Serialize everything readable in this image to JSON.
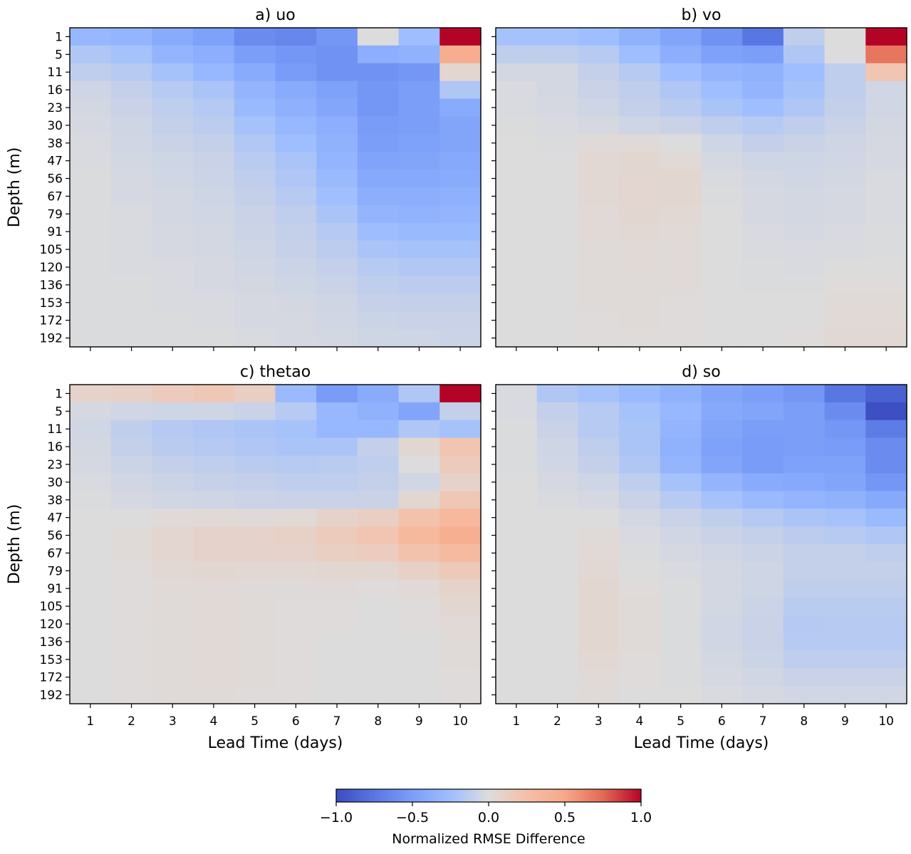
{
  "chart_data": {
    "type": "heatmap",
    "x_label": "Lead Time (days)",
    "y_label": "Depth (m)",
    "lead_times": [
      "1",
      "2",
      "3",
      "4",
      "5",
      "6",
      "7",
      "8",
      "9",
      "10"
    ],
    "depths": [
      "1",
      "5",
      "11",
      "16",
      "23",
      "30",
      "38",
      "47",
      "56",
      "67",
      "79",
      "91",
      "105",
      "120",
      "136",
      "153",
      "172",
      "192"
    ],
    "colorbar": {
      "label": "Normalized RMSE Difference",
      "vmin": -1.0,
      "vmax": 1.0,
      "ticks": [
        "−1.0",
        "−0.5",
        "0.0",
        "0.5",
        "1.0"
      ],
      "tick_values": [
        -1.0,
        -0.5,
        0.0,
        0.5,
        1.0
      ],
      "colormap": "coolwarm"
    },
    "panels": [
      {
        "title": "a) uo",
        "values": [
          [
            -0.3,
            -0.32,
            -0.4,
            -0.48,
            -0.62,
            -0.65,
            -0.55,
            0.0,
            -0.25,
            1.0
          ],
          [
            -0.18,
            -0.22,
            -0.32,
            -0.38,
            -0.5,
            -0.55,
            -0.58,
            -0.38,
            -0.35,
            0.45
          ],
          [
            -0.12,
            -0.15,
            -0.22,
            -0.3,
            -0.4,
            -0.52,
            -0.58,
            -0.58,
            -0.55,
            0.06
          ],
          [
            -0.06,
            -0.1,
            -0.15,
            -0.2,
            -0.32,
            -0.4,
            -0.48,
            -0.55,
            -0.5,
            -0.18
          ],
          [
            -0.04,
            -0.08,
            -0.12,
            -0.16,
            -0.28,
            -0.36,
            -0.44,
            -0.55,
            -0.5,
            -0.4
          ],
          [
            -0.03,
            -0.06,
            -0.1,
            -0.13,
            -0.22,
            -0.3,
            -0.38,
            -0.52,
            -0.5,
            -0.45
          ],
          [
            -0.02,
            -0.05,
            -0.08,
            -0.1,
            -0.17,
            -0.25,
            -0.35,
            -0.5,
            -0.48,
            -0.45
          ],
          [
            -0.02,
            -0.04,
            -0.06,
            -0.08,
            -0.14,
            -0.2,
            -0.32,
            -0.46,
            -0.45,
            -0.42
          ],
          [
            -0.01,
            -0.03,
            -0.05,
            -0.07,
            -0.12,
            -0.18,
            -0.28,
            -0.42,
            -0.42,
            -0.4
          ],
          [
            -0.01,
            -0.03,
            -0.04,
            -0.06,
            -0.1,
            -0.15,
            -0.24,
            -0.38,
            -0.38,
            -0.36
          ],
          [
            -0.01,
            -0.02,
            -0.04,
            -0.05,
            -0.08,
            -0.12,
            -0.2,
            -0.32,
            -0.34,
            -0.32
          ],
          [
            -0.01,
            -0.02,
            -0.03,
            -0.04,
            -0.07,
            -0.1,
            -0.16,
            -0.26,
            -0.28,
            -0.28
          ],
          [
            -0.01,
            -0.02,
            -0.03,
            -0.04,
            -0.06,
            -0.09,
            -0.13,
            -0.2,
            -0.22,
            -0.22
          ],
          [
            -0.01,
            -0.02,
            -0.02,
            -0.03,
            -0.05,
            -0.07,
            -0.1,
            -0.15,
            -0.17,
            -0.17
          ],
          [
            -0.01,
            -0.01,
            -0.02,
            -0.03,
            -0.04,
            -0.06,
            -0.08,
            -0.12,
            -0.13,
            -0.13
          ],
          [
            -0.01,
            -0.01,
            -0.02,
            -0.02,
            -0.03,
            -0.04,
            -0.06,
            -0.09,
            -0.1,
            -0.1
          ],
          [
            -0.01,
            -0.01,
            -0.01,
            -0.02,
            -0.03,
            -0.03,
            -0.05,
            -0.07,
            -0.08,
            -0.08
          ],
          [
            -0.01,
            -0.01,
            -0.01,
            -0.01,
            -0.02,
            -0.03,
            -0.04,
            -0.06,
            -0.06,
            -0.07
          ]
        ]
      },
      {
        "title": "b) vo",
        "values": [
          [
            -0.22,
            -0.22,
            -0.25,
            -0.35,
            -0.45,
            -0.58,
            -0.75,
            -0.12,
            0.0,
            1.0
          ],
          [
            -0.12,
            -0.12,
            -0.15,
            -0.25,
            -0.38,
            -0.48,
            -0.5,
            -0.18,
            0.0,
            0.7
          ],
          [
            -0.04,
            -0.04,
            -0.1,
            -0.15,
            -0.25,
            -0.32,
            -0.35,
            -0.25,
            -0.12,
            0.2
          ],
          [
            -0.02,
            -0.04,
            -0.08,
            -0.12,
            -0.18,
            -0.25,
            -0.32,
            -0.22,
            -0.12,
            -0.05
          ],
          [
            -0.02,
            -0.03,
            -0.06,
            -0.1,
            -0.14,
            -0.2,
            -0.25,
            -0.18,
            -0.1,
            -0.05
          ],
          [
            -0.01,
            -0.02,
            -0.03,
            -0.06,
            -0.08,
            -0.12,
            -0.15,
            -0.12,
            -0.08,
            -0.04
          ],
          [
            0.0,
            -0.01,
            0.02,
            0.02,
            0.0,
            -0.06,
            -0.1,
            -0.08,
            -0.06,
            -0.03
          ],
          [
            0.0,
            0.0,
            0.04,
            0.05,
            0.03,
            -0.03,
            -0.06,
            -0.06,
            -0.05,
            -0.03
          ],
          [
            0.0,
            0.0,
            0.04,
            0.06,
            0.05,
            -0.02,
            -0.04,
            -0.05,
            -0.04,
            -0.02
          ],
          [
            0.0,
            0.0,
            0.04,
            0.06,
            0.05,
            -0.01,
            -0.03,
            -0.04,
            -0.03,
            -0.02
          ],
          [
            0.0,
            0.0,
            0.03,
            0.05,
            0.04,
            0.0,
            -0.03,
            -0.04,
            -0.03,
            -0.02
          ],
          [
            0.0,
            0.0,
            0.03,
            0.04,
            0.03,
            0.0,
            -0.02,
            -0.03,
            -0.02,
            -0.01
          ],
          [
            0.0,
            0.0,
            0.02,
            0.03,
            0.02,
            0.0,
            -0.02,
            -0.02,
            -0.02,
            -0.01
          ],
          [
            0.0,
            0.0,
            0.02,
            0.03,
            0.02,
            0.0,
            -0.01,
            -0.02,
            0.0,
            0.0
          ],
          [
            0.0,
            0.0,
            0.02,
            0.02,
            0.02,
            0.0,
            -0.01,
            -0.01,
            0.01,
            0.01
          ],
          [
            0.0,
            0.0,
            0.02,
            0.02,
            0.01,
            0.0,
            0.0,
            0.0,
            0.02,
            0.02
          ],
          [
            0.0,
            0.0,
            0.01,
            0.02,
            0.01,
            0.0,
            0.0,
            0.0,
            0.03,
            0.03
          ],
          [
            0.0,
            0.0,
            0.01,
            0.01,
            0.01,
            0.0,
            0.0,
            0.01,
            0.04,
            0.04
          ]
        ]
      },
      {
        "title": "c) thetao",
        "values": [
          [
            0.08,
            0.1,
            0.15,
            0.18,
            0.12,
            -0.28,
            -0.52,
            -0.4,
            -0.18,
            1.0
          ],
          [
            -0.03,
            -0.05,
            -0.06,
            -0.06,
            -0.08,
            -0.15,
            -0.3,
            -0.35,
            -0.45,
            -0.1
          ],
          [
            -0.05,
            -0.12,
            -0.16,
            -0.18,
            -0.2,
            -0.22,
            -0.3,
            -0.3,
            -0.18,
            -0.22
          ],
          [
            -0.04,
            -0.1,
            -0.14,
            -0.16,
            -0.18,
            -0.2,
            -0.2,
            -0.1,
            0.05,
            0.2
          ],
          [
            -0.03,
            -0.07,
            -0.1,
            -0.12,
            -0.14,
            -0.15,
            -0.14,
            -0.12,
            0.0,
            0.15
          ],
          [
            -0.02,
            -0.05,
            -0.07,
            -0.09,
            -0.1,
            -0.12,
            -0.12,
            -0.1,
            -0.05,
            0.08
          ],
          [
            -0.01,
            -0.03,
            -0.05,
            -0.06,
            -0.07,
            -0.08,
            -0.08,
            -0.08,
            0.05,
            0.18
          ],
          [
            0.0,
            0.0,
            0.02,
            0.03,
            0.02,
            0.03,
            0.08,
            0.12,
            0.22,
            0.32
          ],
          [
            0.0,
            0.02,
            0.06,
            0.08,
            0.08,
            0.1,
            0.15,
            0.2,
            0.32,
            0.42
          ],
          [
            0.0,
            0.02,
            0.06,
            0.08,
            0.08,
            0.08,
            0.12,
            0.14,
            0.22,
            0.3
          ],
          [
            0.0,
            0.01,
            0.04,
            0.05,
            0.04,
            0.04,
            0.05,
            0.05,
            0.1,
            0.16
          ],
          [
            0.0,
            0.01,
            0.03,
            0.03,
            0.02,
            0.02,
            0.02,
            0.01,
            0.03,
            0.08
          ],
          [
            0.0,
            0.01,
            0.02,
            0.03,
            0.02,
            0.01,
            0.01,
            0.0,
            0.01,
            0.05
          ],
          [
            0.0,
            0.01,
            0.02,
            0.03,
            0.02,
            0.01,
            0.01,
            0.0,
            0.01,
            0.03
          ],
          [
            0.0,
            0.01,
            0.02,
            0.03,
            0.02,
            0.01,
            0.0,
            0.0,
            0.0,
            0.02
          ],
          [
            0.0,
            0.01,
            0.02,
            0.03,
            0.02,
            0.01,
            0.0,
            0.0,
            0.0,
            0.02
          ],
          [
            0.0,
            0.01,
            0.02,
            0.03,
            0.02,
            0.01,
            0.0,
            0.0,
            0.0,
            0.01
          ],
          [
            0.0,
            0.01,
            0.02,
            0.02,
            0.01,
            0.01,
            0.0,
            0.0,
            0.0,
            0.01
          ]
        ]
      },
      {
        "title": "d) so",
        "values": [
          [
            -0.02,
            -0.18,
            -0.22,
            -0.28,
            -0.35,
            -0.45,
            -0.5,
            -0.55,
            -0.75,
            -0.88
          ],
          [
            -0.02,
            -0.1,
            -0.15,
            -0.22,
            -0.3,
            -0.42,
            -0.45,
            -0.5,
            -0.62,
            -0.98
          ],
          [
            -0.01,
            -0.08,
            -0.15,
            -0.2,
            -0.32,
            -0.45,
            -0.5,
            -0.5,
            -0.55,
            -0.72
          ],
          [
            -0.01,
            -0.06,
            -0.12,
            -0.2,
            -0.35,
            -0.48,
            -0.52,
            -0.5,
            -0.52,
            -0.62
          ],
          [
            -0.01,
            -0.05,
            -0.1,
            -0.18,
            -0.32,
            -0.45,
            -0.52,
            -0.48,
            -0.48,
            -0.62
          ],
          [
            0.0,
            -0.03,
            -0.06,
            -0.12,
            -0.22,
            -0.32,
            -0.4,
            -0.42,
            -0.45,
            -0.55
          ],
          [
            0.0,
            -0.02,
            -0.03,
            -0.08,
            -0.15,
            -0.22,
            -0.28,
            -0.32,
            -0.35,
            -0.42
          ],
          [
            0.0,
            0.0,
            0.0,
            -0.04,
            -0.08,
            -0.12,
            -0.16,
            -0.2,
            -0.22,
            -0.28
          ],
          [
            0.0,
            0.0,
            0.02,
            -0.02,
            -0.05,
            -0.08,
            -0.1,
            -0.13,
            -0.15,
            -0.18
          ],
          [
            0.0,
            0.0,
            0.03,
            -0.01,
            -0.03,
            -0.05,
            -0.07,
            -0.1,
            -0.1,
            -0.12
          ],
          [
            0.0,
            0.0,
            0.04,
            0.0,
            -0.02,
            -0.04,
            -0.06,
            -0.1,
            -0.1,
            -0.1
          ],
          [
            0.0,
            0.0,
            0.05,
            0.01,
            -0.01,
            -0.04,
            -0.06,
            -0.12,
            -0.12,
            -0.12
          ],
          [
            0.0,
            0.0,
            0.05,
            0.02,
            -0.01,
            -0.04,
            -0.07,
            -0.14,
            -0.14,
            -0.14
          ],
          [
            0.0,
            0.0,
            0.05,
            0.02,
            -0.01,
            -0.05,
            -0.08,
            -0.16,
            -0.15,
            -0.15
          ],
          [
            0.0,
            0.0,
            0.05,
            0.02,
            -0.01,
            -0.05,
            -0.08,
            -0.15,
            -0.15,
            -0.15
          ],
          [
            0.0,
            0.0,
            0.04,
            0.01,
            -0.01,
            -0.04,
            -0.07,
            -0.12,
            -0.12,
            -0.12
          ],
          [
            0.0,
            0.0,
            0.03,
            0.01,
            -0.01,
            -0.03,
            -0.05,
            -0.08,
            -0.08,
            -0.08
          ],
          [
            0.0,
            0.0,
            0.02,
            0.0,
            0.0,
            -0.02,
            -0.03,
            -0.05,
            -0.05,
            -0.05
          ]
        ]
      }
    ]
  }
}
